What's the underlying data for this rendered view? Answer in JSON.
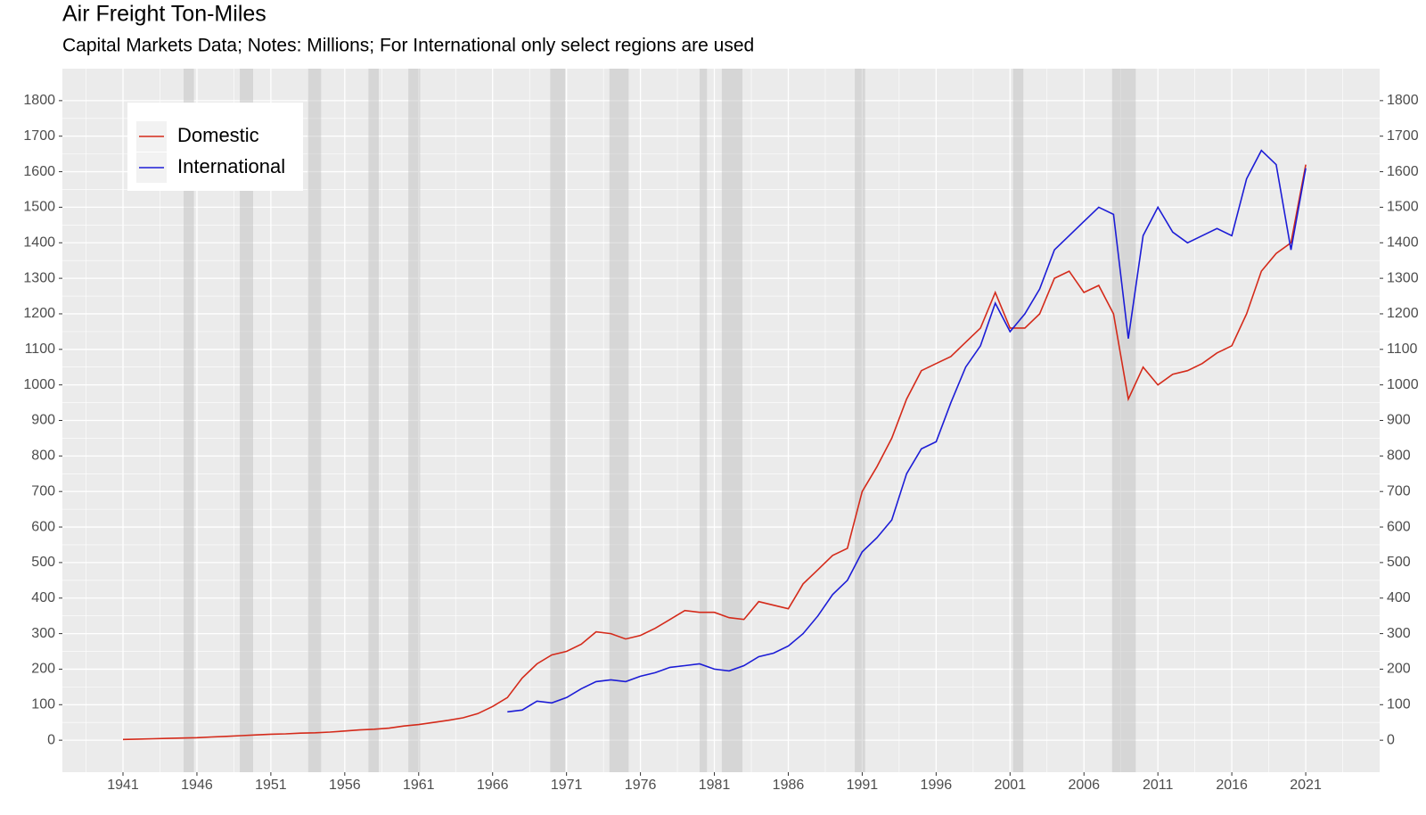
{
  "chart_data": {
    "type": "line",
    "title": "Air Freight Ton-Miles",
    "subtitle": "Capital Markets Data; Notes: Millions; For International only select regions are used",
    "x": [
      1941,
      1942,
      1943,
      1944,
      1945,
      1946,
      1947,
      1948,
      1949,
      1950,
      1951,
      1952,
      1953,
      1954,
      1955,
      1956,
      1957,
      1958,
      1959,
      1960,
      1961,
      1962,
      1963,
      1964,
      1965,
      1966,
      1967,
      1968,
      1969,
      1970,
      1971,
      1972,
      1973,
      1974,
      1975,
      1976,
      1977,
      1978,
      1979,
      1980,
      1981,
      1982,
      1983,
      1984,
      1985,
      1986,
      1987,
      1988,
      1989,
      1990,
      1991,
      1992,
      1993,
      1994,
      1995,
      1996,
      1997,
      1998,
      1999,
      2000,
      2001,
      2002,
      2003,
      2004,
      2005,
      2006,
      2007,
      2008,
      2009,
      2010,
      2011,
      2012,
      2013,
      2014,
      2015,
      2016,
      2017,
      2018,
      2019,
      2020,
      2021
    ],
    "series": [
      {
        "name": "Domestic",
        "color": "#d42a1a",
        "values": [
          2,
          3,
          4,
          5,
          6,
          7,
          9,
          11,
          13,
          15,
          17,
          18,
          20,
          21,
          23,
          26,
          29,
          31,
          34,
          40,
          44,
          50,
          56,
          63,
          75,
          95,
          120,
          175,
          215,
          240,
          250,
          270,
          305,
          300,
          285,
          295,
          315,
          340,
          365,
          360,
          360,
          345,
          340,
          390,
          380,
          370,
          440,
          480,
          520,
          540,
          700,
          770,
          850,
          960,
          1040,
          1060,
          1080,
          1120,
          1160,
          1260,
          1160,
          1160,
          1200,
          1300,
          1320,
          1260,
          1280,
          1200,
          960,
          1050,
          1000,
          1030,
          1040,
          1060,
          1090,
          1110,
          1200,
          1320,
          1370,
          1400,
          1620
        ]
      },
      {
        "name": "International",
        "color": "#1c1cd6",
        "values": [
          null,
          null,
          null,
          null,
          null,
          null,
          null,
          null,
          null,
          null,
          null,
          null,
          null,
          null,
          null,
          null,
          null,
          null,
          null,
          null,
          null,
          null,
          null,
          null,
          null,
          null,
          80,
          85,
          110,
          105,
          120,
          145,
          165,
          170,
          165,
          180,
          190,
          205,
          210,
          215,
          200,
          195,
          210,
          235,
          245,
          265,
          300,
          350,
          410,
          450,
          530,
          570,
          620,
          750,
          820,
          840,
          950,
          1050,
          1110,
          1230,
          1150,
          1200,
          1270,
          1380,
          1420,
          1460,
          1500,
          1480,
          1130,
          1420,
          1500,
          1430,
          1400,
          1420,
          1440,
          1420,
          1580,
          1660,
          1620,
          1380,
          1610
        ]
      }
    ],
    "recessions": [
      [
        1945.1,
        1945.8
      ],
      [
        1948.9,
        1949.8
      ],
      [
        1953.5,
        1954.4
      ],
      [
        1957.6,
        1958.3
      ],
      [
        1960.3,
        1961.1
      ],
      [
        1969.9,
        1970.9
      ],
      [
        1973.9,
        1975.2
      ],
      [
        1980.0,
        1980.5
      ],
      [
        1981.5,
        1982.9
      ],
      [
        1990.5,
        1991.2
      ],
      [
        2001.2,
        2001.9
      ],
      [
        2007.9,
        2009.5
      ]
    ],
    "xlim": [
      1936.9,
      2026
    ],
    "xticks": [
      1941,
      1946,
      1951,
      1956,
      1961,
      1966,
      1971,
      1976,
      1981,
      1986,
      1991,
      1996,
      2001,
      2006,
      2011,
      2016,
      2021
    ],
    "ylim": [
      -90,
      1890
    ],
    "yticks": [
      0,
      100,
      200,
      300,
      400,
      500,
      600,
      700,
      800,
      900,
      1000,
      1100,
      1200,
      1300,
      1400,
      1500,
      1600,
      1700,
      1800
    ],
    "grid": true,
    "legend": "top-left"
  }
}
